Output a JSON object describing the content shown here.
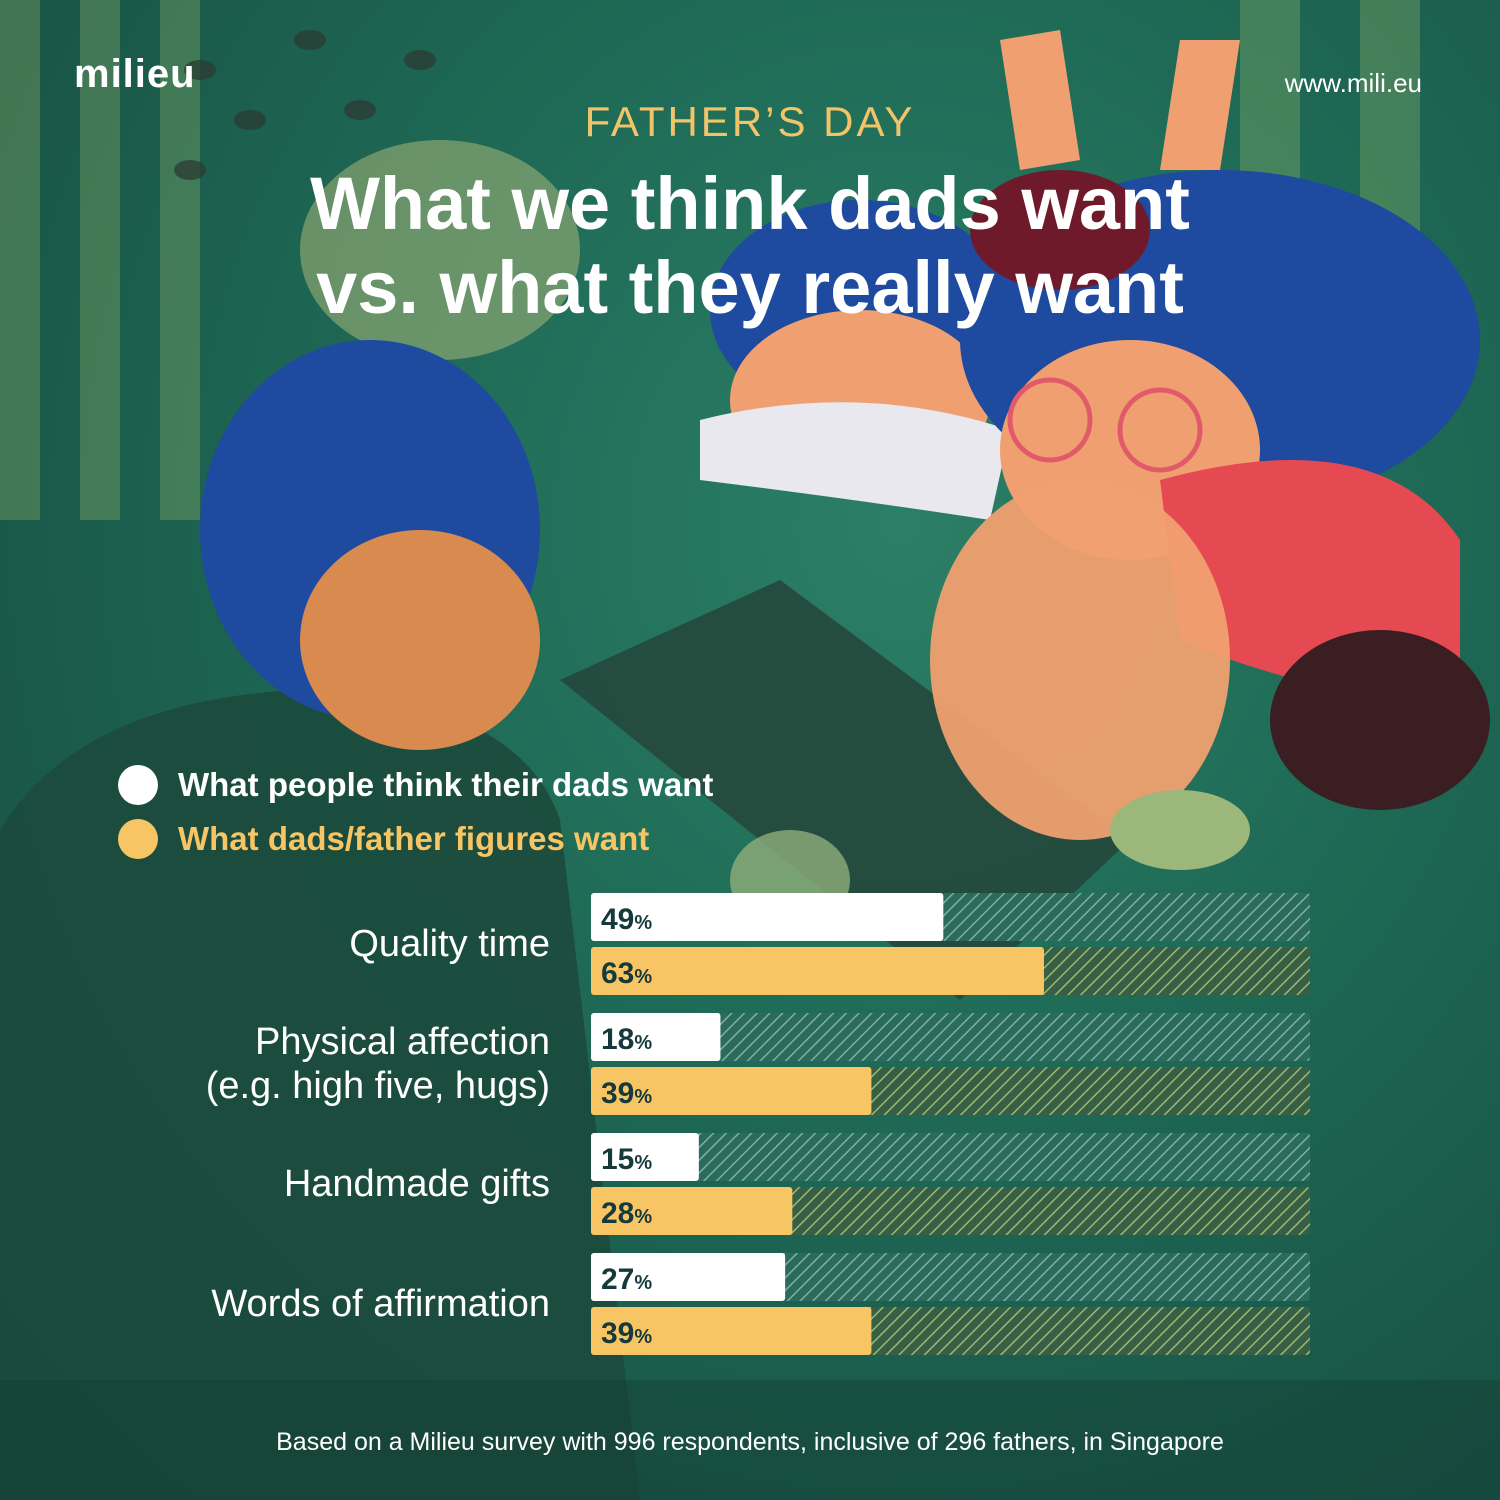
{
  "header": {
    "logo": "milieu",
    "website": "www.mili.eu",
    "kicker": "FATHER’S DAY",
    "title_line1": "What we think dads want",
    "title_line2": "vs. what they really want"
  },
  "colors": {
    "think": "#ffffff",
    "want": "#f8c564",
    "track_think": "#7fb0a4",
    "track_want": "#9eb870",
    "text_dark": "#163a3c"
  },
  "chart_data": {
    "type": "bar",
    "orientation": "horizontal",
    "value_suffix": "%",
    "xlim": [
      0,
      100
    ],
    "categories": [
      "Quality time",
      "Physical affection (e.g. high five, hugs)",
      "Handmade gifts",
      "Words of affirmation"
    ],
    "category_lines": [
      [
        "Quality time"
      ],
      [
        "Physical affection",
        "(e.g. high five, hugs)"
      ],
      [
        "Handmade gifts"
      ],
      [
        "Words of affirmation"
      ]
    ],
    "series": [
      {
        "name": "What people think their dads want",
        "values": [
          49,
          18,
          15,
          27
        ]
      },
      {
        "name": "What dads/father figures want",
        "values": [
          63,
          39,
          28,
          39
        ]
      }
    ]
  },
  "footnote": "Based on a Milieu survey with 996 respondents, inclusive of 296 fathers, in Singapore"
}
